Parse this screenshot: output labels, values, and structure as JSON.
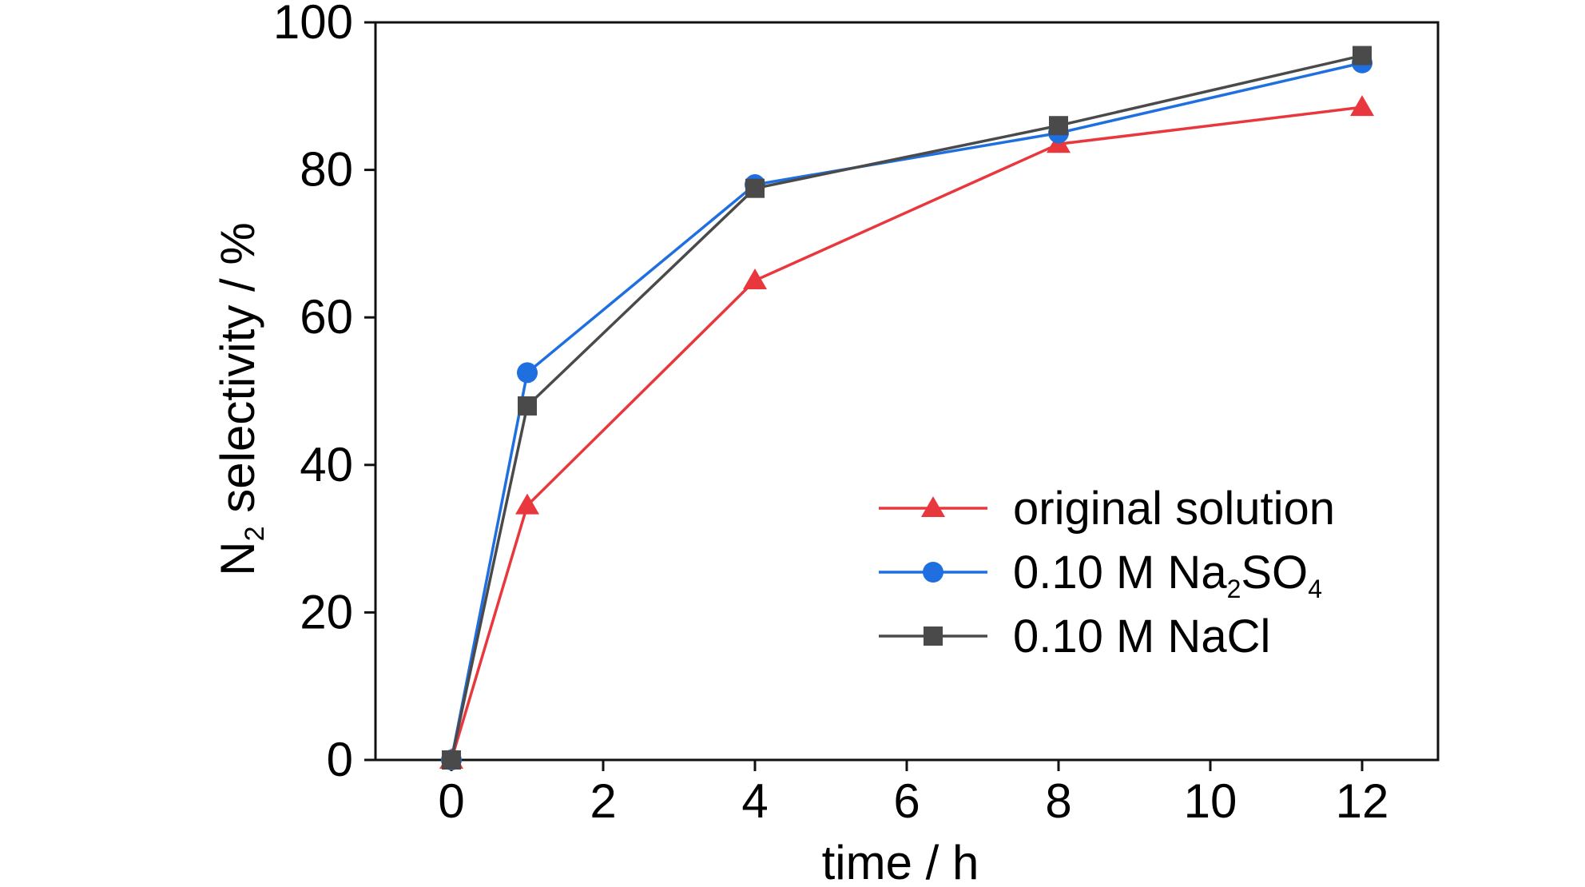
{
  "chart_data": {
    "type": "line",
    "title": "",
    "xlabel": "time / h",
    "ylabel": {
      "main": "N",
      "sub": "2",
      "rest": " selectivity / %"
    },
    "xlim": [
      -1,
      13
    ],
    "ylim": [
      0,
      100
    ],
    "xticks": [
      0,
      2,
      4,
      6,
      8,
      10,
      12
    ],
    "yticks": [
      0,
      20,
      40,
      60,
      80,
      100
    ],
    "grid": false,
    "legend_position": "lower-right",
    "series": [
      {
        "name": "original solution",
        "legend_parts": [
          {
            "t": "original solution"
          }
        ],
        "color": "#e8383d",
        "marker": "triangle",
        "x": [
          0,
          1,
          4,
          8,
          12
        ],
        "y": [
          0,
          34.5,
          65,
          83.5,
          88.5
        ]
      },
      {
        "name": "0.10 M Na2SO4",
        "legend_parts": [
          {
            "t": "0.10 M Na"
          },
          {
            "t": "2",
            "sub": true
          },
          {
            "t": "SO"
          },
          {
            "t": "4",
            "sub": true
          }
        ],
        "color": "#1f6fe0",
        "marker": "circle",
        "x": [
          0,
          1,
          4,
          8,
          12
        ],
        "y": [
          0,
          52.5,
          78,
          85,
          94.5
        ]
      },
      {
        "name": "0.10 M NaCl",
        "legend_parts": [
          {
            "t": "0.10 M NaCl"
          }
        ],
        "color": "#4a4a4a",
        "marker": "square",
        "x": [
          0,
          1,
          4,
          8,
          12
        ],
        "y": [
          0,
          48,
          77.5,
          86,
          95.5
        ]
      }
    ]
  }
}
